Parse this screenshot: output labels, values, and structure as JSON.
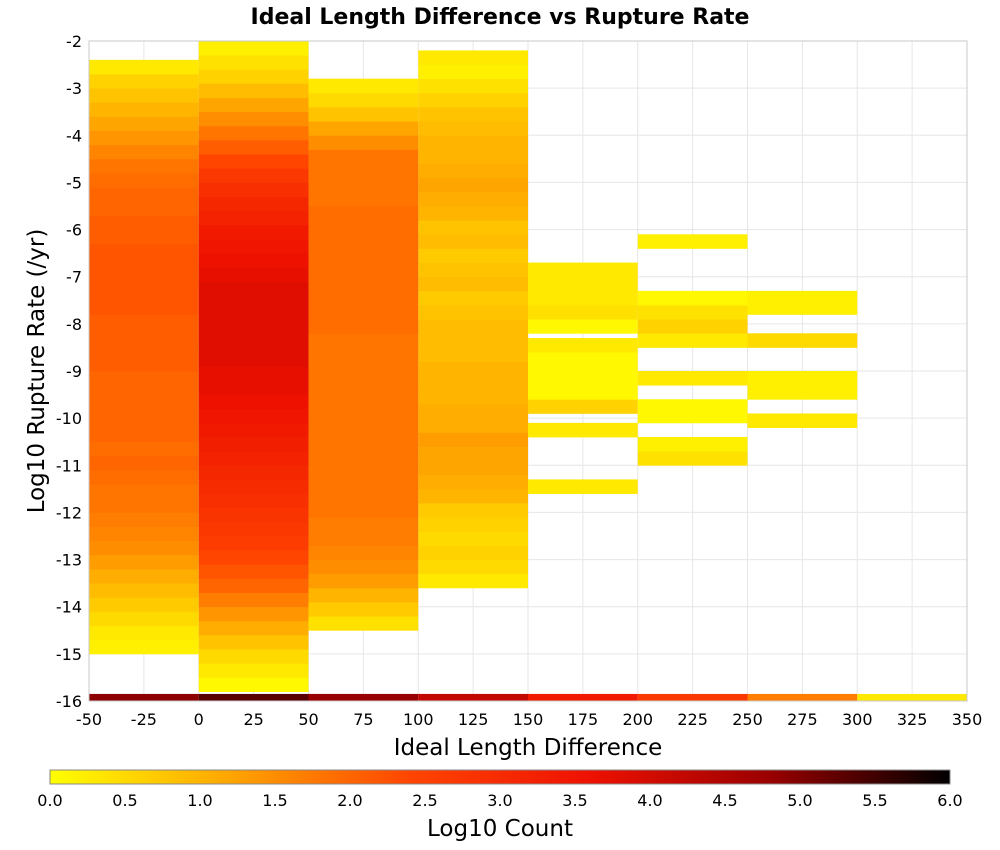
{
  "chart_data": {
    "type": "heatmap",
    "title": "Ideal Length Difference vs Rupture Rate",
    "xlabel": "Ideal Length Difference",
    "ylabel": "Log10 Rupture Rate (/yr)",
    "xlim": [
      -50,
      350
    ],
    "ylim": [
      -16,
      -2
    ],
    "x_ticks": [
      "-50",
      "-25",
      "0",
      "25",
      "50",
      "75",
      "100",
      "125",
      "150",
      "175",
      "200",
      "225",
      "250",
      "275",
      "300",
      "325",
      "350"
    ],
    "y_ticks": [
      "-2",
      "-3",
      "-4",
      "-5",
      "-6",
      "-7",
      "-8",
      "-9",
      "-10",
      "-11",
      "-12",
      "-13",
      "-14",
      "-15",
      "-16"
    ],
    "grid": true,
    "x_bin_width": 50,
    "y_bin_height": 0.3,
    "colorbar": {
      "label": "Log10 Count",
      "range": [
        0.0,
        6.0
      ],
      "ticks": [
        "0.0",
        "0.5",
        "1.0",
        "1.5",
        "2.0",
        "2.5",
        "3.0",
        "3.5",
        "4.0",
        "4.5",
        "5.0",
        "5.5",
        "6.0"
      ],
      "colors": [
        "#ffff00",
        "#ffa500",
        "#ff4500",
        "#ee1100",
        "#990000",
        "#000000"
      ]
    },
    "columns": [
      {
        "x_start": -50,
        "x_end": 0,
        "y_start": -15.0,
        "values": [
          0.2,
          0.3,
          0.5,
          0.7,
          0.9,
          1.1,
          1.3,
          1.5,
          1.6,
          1.7,
          1.8,
          1.8,
          1.9,
          2.0,
          1.9,
          2.0,
          2.0,
          2.0,
          2.0,
          2.0,
          2.1,
          2.1,
          2.1,
          2.1,
          2.2,
          2.2,
          2.2,
          2.2,
          2.2,
          2.1,
          2.1,
          2.0,
          2.0,
          1.9,
          1.8,
          1.6,
          1.4,
          1.2,
          1.0,
          0.8,
          0.6,
          0.3
        ]
      },
      {
        "x_start": 0,
        "x_end": 50,
        "y_start": -15.8,
        "values": [
          0.1,
          0.3,
          0.5,
          0.8,
          1.1,
          1.4,
          1.7,
          2.0,
          2.2,
          2.4,
          2.6,
          2.7,
          2.8,
          2.9,
          3.0,
          3.1,
          3.2,
          3.3,
          3.4,
          3.5,
          3.6,
          3.7,
          3.7,
          3.8,
          3.8,
          3.8,
          3.8,
          3.8,
          3.8,
          3.7,
          3.6,
          3.5,
          3.4,
          3.2,
          3.1,
          2.9,
          2.7,
          2.4,
          2.1,
          1.8,
          1.5,
          1.2,
          0.9,
          0.6,
          0.4,
          0.2
        ]
      },
      {
        "x_start": 100,
        "x_end": 150,
        "y_start": -13.6,
        "values": [
          0.3,
          0.5,
          0.6,
          0.5,
          0.6,
          0.7,
          1.0,
          1.1,
          1.2,
          1.2,
          1.3,
          1.1,
          1.1,
          1.0,
          1.0,
          1.0,
          0.9,
          0.9,
          0.9,
          0.8,
          0.7,
          0.9,
          0.8,
          0.7,
          0.9,
          0.8,
          1.0,
          1.1,
          1.2,
          1.1,
          1.0,
          1.0,
          0.9,
          0.8,
          0.6,
          0.4,
          0.2,
          0.3
        ]
      },
      {
        "x_start": 50,
        "x_end": 100,
        "y_start": -14.5,
        "values": [
          0.4,
          0.7,
          1.0,
          1.3,
          1.5,
          1.6,
          1.7,
          1.7,
          1.8,
          1.8,
          1.8,
          1.8,
          1.8,
          1.8,
          1.8,
          1.8,
          1.8,
          1.8,
          1.8,
          1.8,
          1.8,
          1.9,
          1.9,
          1.9,
          1.9,
          1.9,
          1.9,
          1.9,
          1.9,
          1.9,
          1.8,
          1.8,
          1.8,
          1.8,
          1.5,
          1.2,
          0.8,
          0.5,
          0.3
        ]
      }
    ],
    "cells": [
      {
        "x_start": 150,
        "x_end": 200,
        "y_start": -11.6,
        "y_end": -11.3,
        "value": 0.3
      },
      {
        "x_start": 150,
        "x_end": 200,
        "y_start": -10.4,
        "y_end": -10.1,
        "value": 0.3
      },
      {
        "x_start": 150,
        "x_end": 200,
        "y_start": -9.9,
        "y_end": -9.6,
        "value": 0.6
      },
      {
        "x_start": 150,
        "x_end": 200,
        "y_start": -9.6,
        "y_end": -8.6,
        "value": 0.1
      },
      {
        "x_start": 150,
        "x_end": 200,
        "y_start": -8.6,
        "y_end": -8.3,
        "value": 0.3
      },
      {
        "x_start": 150,
        "x_end": 200,
        "y_start": -8.2,
        "y_end": -7.9,
        "value": 0.1
      },
      {
        "x_start": 150,
        "x_end": 200,
        "y_start": -7.9,
        "y_end": -7.6,
        "value": 0.4
      },
      {
        "x_start": 150,
        "x_end": 200,
        "y_start": -7.6,
        "y_end": -6.7,
        "value": 0.3
      },
      {
        "x_start": 200,
        "x_end": 250,
        "y_start": -11.0,
        "y_end": -10.7,
        "value": 0.4
      },
      {
        "x_start": 200,
        "x_end": 250,
        "y_start": -10.7,
        "y_end": -10.4,
        "value": 0.2
      },
      {
        "x_start": 200,
        "x_end": 250,
        "y_start": -10.1,
        "y_end": -9.6,
        "value": 0.1
      },
      {
        "x_start": 200,
        "x_end": 250,
        "y_start": -9.3,
        "y_end": -9.0,
        "value": 0.3
      },
      {
        "x_start": 200,
        "x_end": 250,
        "y_start": -8.5,
        "y_end": -8.2,
        "value": 0.3
      },
      {
        "x_start": 200,
        "x_end": 250,
        "y_start": -8.2,
        "y_end": -7.9,
        "value": 0.6
      },
      {
        "x_start": 200,
        "x_end": 250,
        "y_start": -7.9,
        "y_end": -7.6,
        "value": 0.4
      },
      {
        "x_start": 200,
        "x_end": 250,
        "y_start": -7.6,
        "y_end": -7.3,
        "value": 0.1
      },
      {
        "x_start": 200,
        "x_end": 250,
        "y_start": -6.4,
        "y_end": -6.1,
        "value": 0.2
      },
      {
        "x_start": 250,
        "x_end": 300,
        "y_start": -10.2,
        "y_end": -9.9,
        "value": 0.3
      },
      {
        "x_start": 250,
        "x_end": 300,
        "y_start": -9.6,
        "y_end": -9.0,
        "value": 0.2
      },
      {
        "x_start": 250,
        "x_end": 300,
        "y_start": -8.5,
        "y_end": -8.2,
        "value": 0.5
      },
      {
        "x_start": 250,
        "x_end": 300,
        "y_start": -7.8,
        "y_end": -7.3,
        "value": 0.2
      }
    ],
    "bottom_row": {
      "y_start": -16.0,
      "y_end": -15.85,
      "x_bins": [
        [
          -50,
          0
        ],
        [
          0,
          50
        ],
        [
          50,
          100
        ],
        [
          100,
          150
        ],
        [
          150,
          200
        ],
        [
          200,
          250
        ],
        [
          250,
          300
        ],
        [
          300,
          350
        ]
      ],
      "values": [
        4.9,
        5.3,
        4.8,
        4.2,
        3.4,
        2.7,
        1.7,
        0.3
      ]
    }
  }
}
